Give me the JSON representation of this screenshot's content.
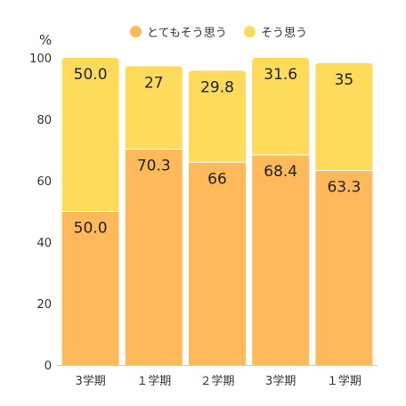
{
  "chart_data": {
    "type": "bar",
    "stacked": true,
    "unit": "%",
    "categories": [
      "3学期",
      "１学期",
      "２学期",
      "3学期",
      "１学期"
    ],
    "series": [
      {
        "name": "とてもそう思う",
        "color": "#FDB95A",
        "values": [
          50.0,
          70.3,
          66,
          68.4,
          63.3
        ],
        "labels": [
          "50.0",
          "70.3",
          "66",
          "68.4",
          "63.3"
        ]
      },
      {
        "name": "そう思う",
        "color": "#FFDB5C",
        "values": [
          50.0,
          27,
          29.8,
          31.6,
          35
        ],
        "labels": [
          "50.0",
          "27",
          "29.8",
          "31.6",
          "35"
        ]
      }
    ],
    "ylim": [
      0,
      100
    ],
    "yticks": [
      0,
      20,
      40,
      60,
      80,
      100
    ],
    "legend_position": "top",
    "grid": false
  }
}
